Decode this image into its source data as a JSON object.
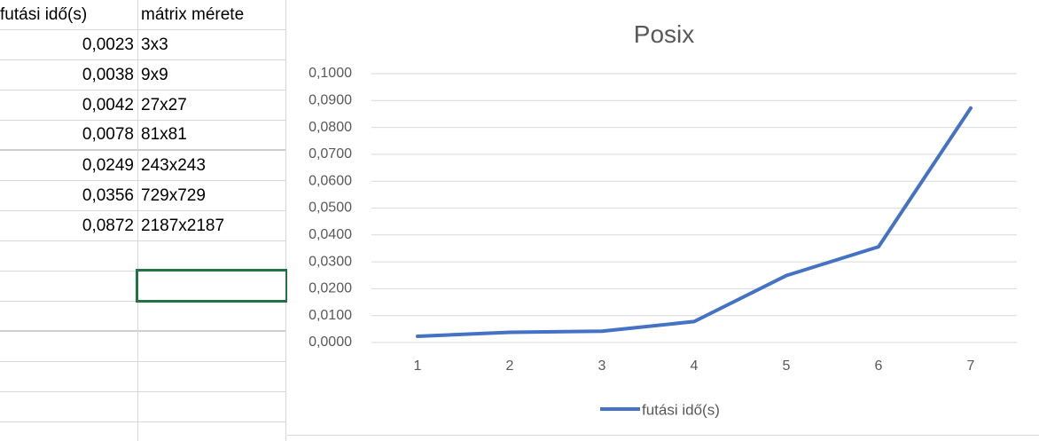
{
  "sheet": {
    "headers": {
      "col_a": "futási idő(s)",
      "col_b": "mátrix mérete"
    },
    "rows": [
      {
        "time": "0,0023",
        "size": "3x3"
      },
      {
        "time": "0,0038",
        "size": "9x9"
      },
      {
        "time": "0,0042",
        "size": "27x27"
      },
      {
        "time": "0,0078",
        "size": "81x81"
      },
      {
        "time": "0,0249",
        "size": "243x243"
      },
      {
        "time": "0,0356",
        "size": "729x729"
      },
      {
        "time": "0,0872",
        "size": "2187x2187"
      }
    ],
    "selection_color": "#217346"
  },
  "chart_data": {
    "type": "line",
    "title": "Posix",
    "x": [
      1,
      2,
      3,
      4,
      5,
      6,
      7
    ],
    "series": [
      {
        "name": "futási idő(s)",
        "values": [
          0.0023,
          0.0038,
          0.0042,
          0.0078,
          0.0249,
          0.0356,
          0.0872
        ],
        "color": "#4472c4"
      }
    ],
    "ylim": [
      0,
      0.1
    ],
    "yticks": [
      "0,0000",
      "0,0100",
      "0,0200",
      "0,0300",
      "0,0400",
      "0,0500",
      "0,0600",
      "0,0700",
      "0,0800",
      "0,0900",
      "0,1000"
    ],
    "xticks": [
      "1",
      "2",
      "3",
      "4",
      "5",
      "6",
      "7"
    ],
    "grid": true,
    "legend": "bottom"
  }
}
